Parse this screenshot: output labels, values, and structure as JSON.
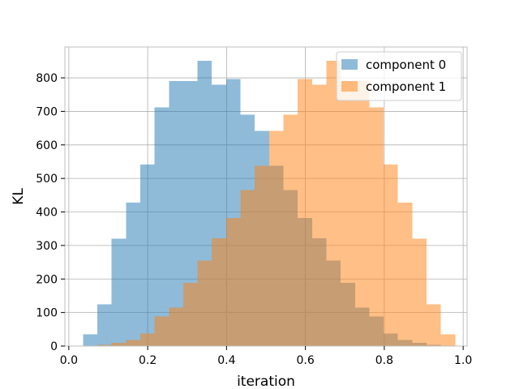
{
  "chart_data": {
    "type": "histogram",
    "title": "",
    "xlabel": "iteration",
    "ylabel": "KL",
    "xlim": [
      -0.01,
      1.01
    ],
    "ylim": [
      0,
      892
    ],
    "xticks": [
      0.0,
      0.2,
      0.4,
      0.6,
      0.8,
      1.0
    ],
    "xtick_labels": [
      "0.0",
      "0.2",
      "0.4",
      "0.6",
      "0.8",
      "1.0"
    ],
    "yticks": [
      0,
      100,
      200,
      300,
      400,
      500,
      600,
      700,
      800
    ],
    "ytick_labels": [
      "0",
      "100",
      "200",
      "300",
      "400",
      "500",
      "600",
      "700",
      "800"
    ],
    "grid": true,
    "legend_position": "upper right",
    "series": [
      {
        "name": "component 0",
        "color": "#1f77b4",
        "alpha": 0.5,
        "bin_edges": [
          0.036,
          0.0723,
          0.1086,
          0.1449,
          0.1812,
          0.2175,
          0.2538,
          0.2901,
          0.3264,
          0.3627,
          0.399,
          0.4353,
          0.4716,
          0.5079,
          0.5442,
          0.5805,
          0.6168,
          0.6531,
          0.6894,
          0.7257,
          0.762,
          0.7983,
          0.8346,
          0.8709,
          0.9072,
          0.9435,
          0.9798
        ],
        "counts": [
          35,
          125,
          320,
          428,
          542,
          712,
          791,
          790,
          851,
          779,
          797,
          690,
          642,
          538,
          465,
          382,
          322,
          255,
          188,
          115,
          88,
          38,
          18,
          10,
          4,
          1
        ]
      },
      {
        "name": "component 1",
        "color": "#ff7f0e",
        "alpha": 0.5,
        "bin_edges": [
          0.036,
          0.0723,
          0.1086,
          0.1449,
          0.1812,
          0.2175,
          0.2538,
          0.2901,
          0.3264,
          0.3627,
          0.399,
          0.4353,
          0.4716,
          0.5079,
          0.5442,
          0.5805,
          0.6168,
          0.6531,
          0.6894,
          0.7257,
          0.762,
          0.7983,
          0.8346,
          0.8709,
          0.9072,
          0.9435,
          0.9798
        ],
        "counts": [
          1,
          4,
          10,
          18,
          38,
          88,
          115,
          188,
          255,
          322,
          382,
          465,
          538,
          642,
          690,
          797,
          779,
          851,
          790,
          791,
          712,
          542,
          428,
          320,
          125,
          35
        ]
      }
    ]
  }
}
